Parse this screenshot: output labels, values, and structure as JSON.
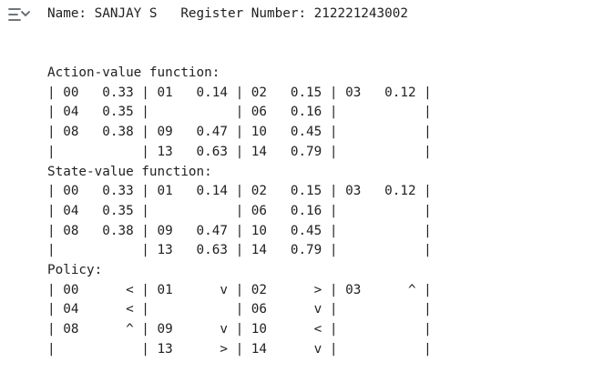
{
  "output_header": "Name: SANJAY S   Register Number: 212221243002",
  "action_value": {
    "title": "Action-value function:",
    "rows": [
      "| 00   0.33 | 01   0.14 | 02   0.15 | 03   0.12 |",
      "| 04   0.35 |           | 06   0.16 |           |",
      "| 08   0.38 | 09   0.47 | 10   0.45 |           |",
      "|           | 13   0.63 | 14   0.79 |           |"
    ]
  },
  "state_value": {
    "title": "State-value function:",
    "rows": [
      "| 00   0.33 | 01   0.14 | 02   0.15 | 03   0.12 |",
      "| 04   0.35 |           | 06   0.16 |           |",
      "| 08   0.38 | 09   0.47 | 10   0.45 |           |",
      "|           | 13   0.63 | 14   0.79 |           |"
    ]
  },
  "policy": {
    "title": "Policy:",
    "rows": [
      "| 00      < | 01      v | 02      > | 03      ^ |",
      "| 04      < |           | 06      v |           |",
      "| 08      ^ | 09      v | 10      < |           |",
      "|           | 13      > | 14      v |           |"
    ]
  },
  "icons": {
    "output_toggle": "output-collapse-icon"
  },
  "colors": {
    "text": "#212121",
    "icon": "#5f6368",
    "background": "#ffffff"
  }
}
